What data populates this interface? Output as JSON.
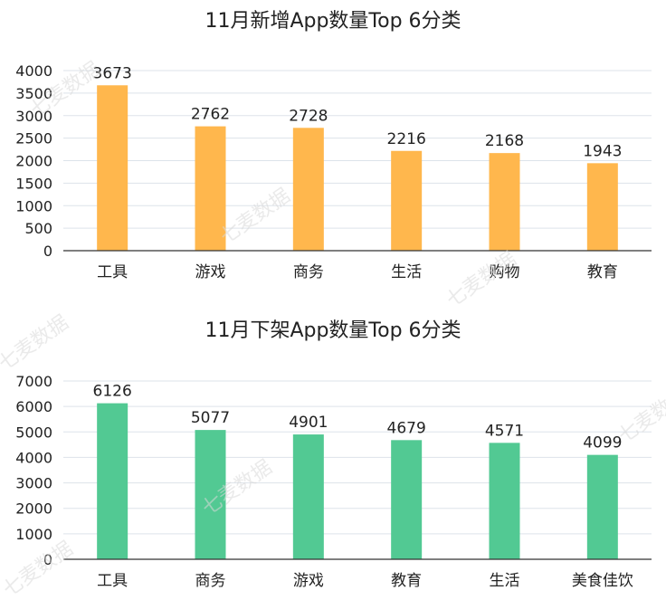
{
  "chart_data": [
    {
      "type": "bar",
      "title": "11月新增App数量Top 6分类",
      "categories": [
        "工具",
        "游戏",
        "商务",
        "生活",
        "购物",
        "教育"
      ],
      "values": [
        3673,
        2762,
        2728,
        2216,
        2168,
        1943
      ],
      "yticks": [
        "0",
        "500",
        "1000",
        "1500",
        "2000",
        "2500",
        "3000",
        "3500",
        "4000"
      ],
      "ylim": [
        0,
        4000
      ],
      "grid": true,
      "color": "#FFB74D"
    },
    {
      "type": "bar",
      "title": "11月下架App数量Top 6分类",
      "categories": [
        "工具",
        "商务",
        "游戏",
        "教育",
        "生活",
        "美食佳饮"
      ],
      "values": [
        6126,
        5077,
        4901,
        4679,
        4571,
        4099
      ],
      "yticks": [
        "0",
        "1000",
        "2000",
        "3000",
        "4000",
        "5000",
        "6000",
        "7000"
      ],
      "ylim": [
        0,
        7000
      ],
      "grid": true,
      "color": "#52C993"
    }
  ],
  "watermark": "七麦数据"
}
